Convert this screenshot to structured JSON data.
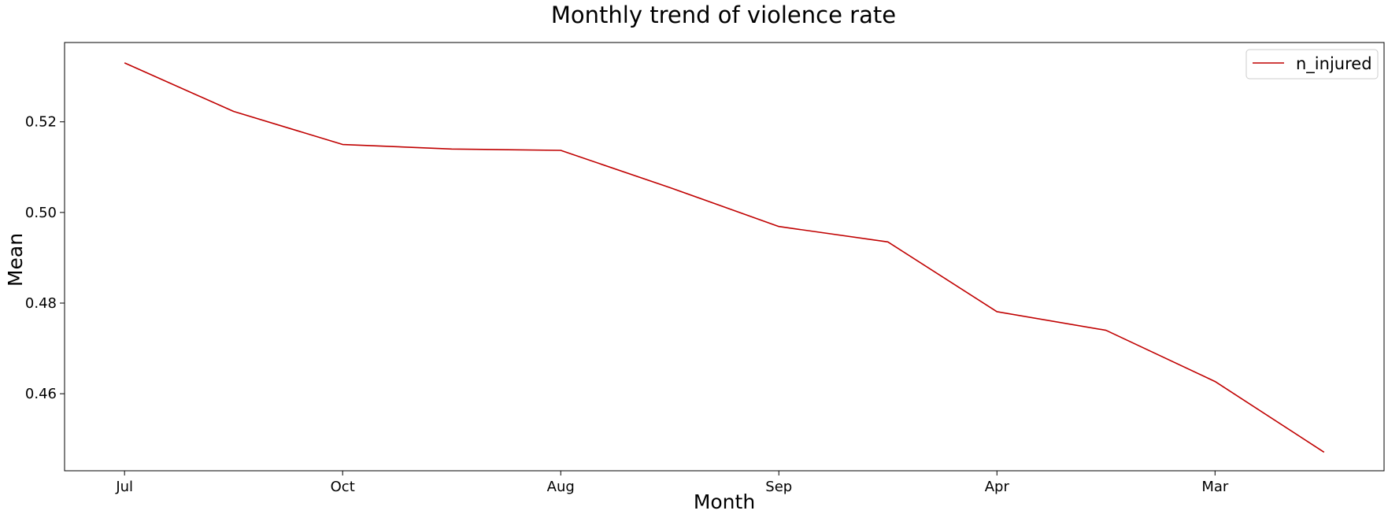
{
  "chart_data": {
    "type": "line",
    "title": "Monthly trend of violence rate",
    "xlabel": "Month",
    "ylabel": "Mean",
    "x_tick_labels": [
      "Jul",
      "Oct",
      "Aug",
      "Sep",
      "Apr",
      "Mar"
    ],
    "x_tick_positions": [
      0,
      2,
      4,
      6,
      8,
      10
    ],
    "xlim": [
      -0.55,
      11.55
    ],
    "ylim": [
      0.443,
      0.5375
    ],
    "y_ticks": [
      0.46,
      0.48,
      0.5,
      0.52
    ],
    "y_tick_labels": [
      "0.46",
      "0.48",
      "0.50",
      "0.52"
    ],
    "grid": false,
    "legend_position": "top-right",
    "series": [
      {
        "name": "n_injured",
        "color": "#c00000",
        "x": [
          0,
          1,
          2,
          3,
          4,
          5,
          6,
          7,
          8,
          9,
          10,
          11
        ],
        "values": [
          0.533,
          0.5223,
          0.515,
          0.514,
          0.5137,
          0.5055,
          0.4969,
          0.4935,
          0.4781,
          0.474,
          0.4627,
          0.4471
        ]
      }
    ]
  }
}
